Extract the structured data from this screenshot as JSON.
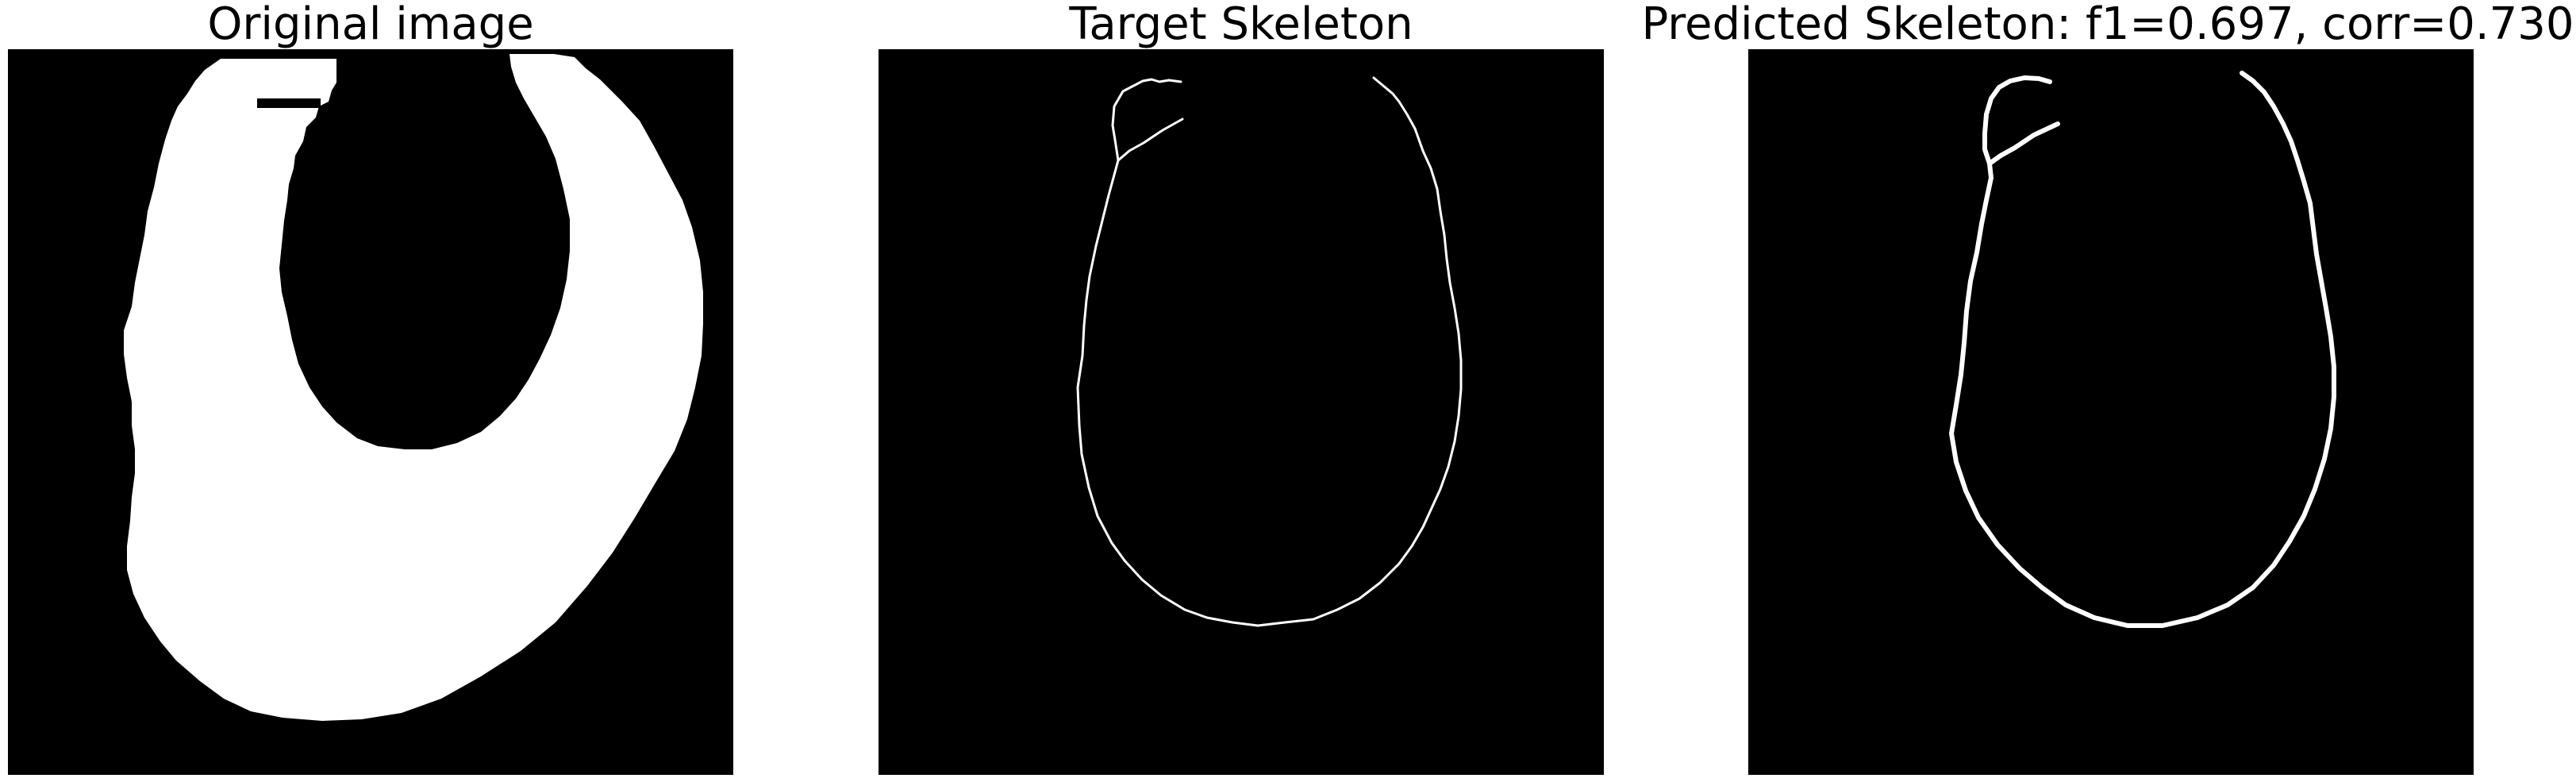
{
  "panels": {
    "original": {
      "title": "Original image"
    },
    "target": {
      "title": "Target Skeleton"
    },
    "predicted": {
      "title": "Predicted Skeleton: f1=0.697, corr=0.730"
    }
  },
  "colors": {
    "background": "#000000",
    "foreground": "#ffffff",
    "page": "#ffffff"
  }
}
